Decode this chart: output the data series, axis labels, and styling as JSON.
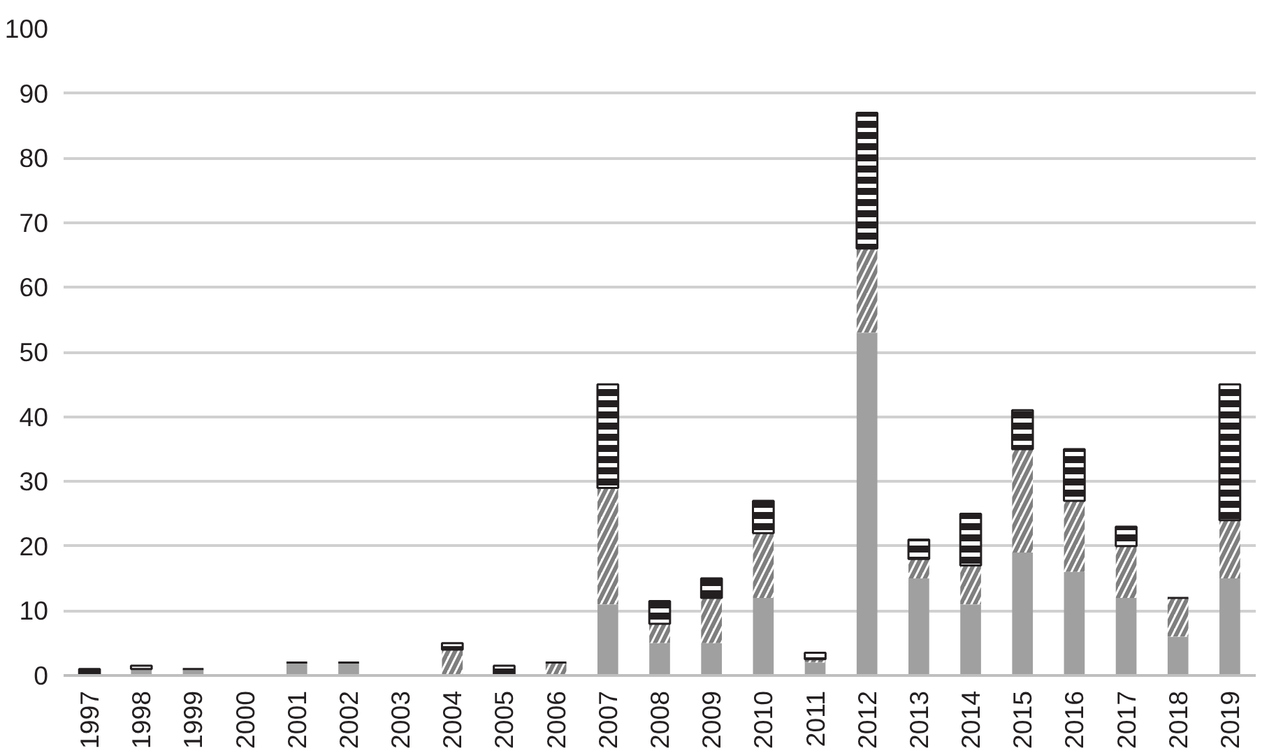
{
  "chart_data": {
    "type": "bar",
    "stacked": true,
    "categories": [
      "1997",
      "1998",
      "1999",
      "2000",
      "2001",
      "2002",
      "2003",
      "2004",
      "2005",
      "2006",
      "2007",
      "2008",
      "2009",
      "2010",
      "2011",
      "2012",
      "2013",
      "2014",
      "2015",
      "2016",
      "2017",
      "2018",
      "2019"
    ],
    "series": [
      {
        "color": "#a0a0a0",
        "values": [
          0,
          1,
          1,
          0,
          2,
          2,
          0,
          0,
          0,
          0,
          11,
          5,
          5,
          12,
          2,
          53,
          15,
          11,
          19,
          16,
          12,
          6,
          15
        ]
      },
      {
        "color": "#7f7f7f",
        "values": [
          0,
          0,
          0,
          0,
          0,
          0,
          0,
          4,
          0,
          2,
          18,
          3,
          7,
          10,
          0.5,
          13,
          3,
          6,
          16,
          11,
          8,
          6,
          9
        ]
      },
      {
        "color": "#231f20",
        "values": [
          1,
          0.5,
          0,
          0,
          0,
          0,
          0,
          1,
          1.5,
          0,
          16,
          3.5,
          3,
          5,
          1,
          21,
          3,
          8,
          6,
          8,
          3,
          0,
          21
        ]
      }
    ],
    "ylim": [
      0,
      100
    ],
    "yticks": [
      0,
      10,
      20,
      30,
      40,
      50,
      60,
      70,
      80,
      90,
      100
    ],
    "grid": "y"
  }
}
